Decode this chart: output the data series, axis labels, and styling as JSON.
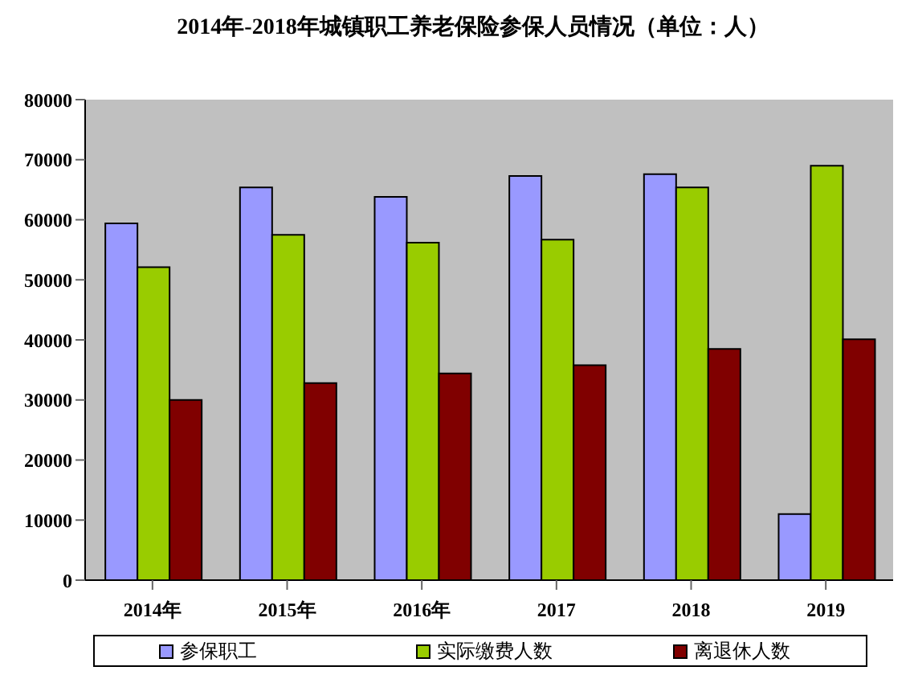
{
  "chart_data": {
    "type": "bar",
    "title": "2014年-2018年城镇职工养老保险参保人员情况（单位：人）",
    "categories": [
      "2014年",
      "2015年",
      "2016年",
      "2017",
      "2018",
      "2019"
    ],
    "series": [
      {
        "name": "参保职工",
        "color": "#9999ff",
        "values": [
          59400,
          65400,
          63800,
          67300,
          67600,
          11000
        ]
      },
      {
        "name": "实际缴费人数",
        "color": "#99cc00",
        "values": [
          52100,
          57500,
          56200,
          56700,
          65400,
          69000
        ]
      },
      {
        "name": "离退休人数",
        "color": "#800000",
        "values": [
          30000,
          32800,
          34400,
          35800,
          38500,
          40100
        ]
      }
    ],
    "ylim": [
      0,
      80000
    ],
    "yticks": [
      0,
      10000,
      20000,
      30000,
      40000,
      50000,
      60000,
      70000,
      80000
    ],
    "legend": "bottom"
  }
}
